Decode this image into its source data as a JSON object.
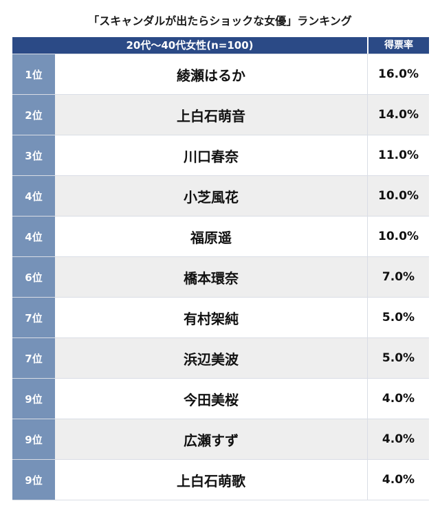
{
  "title": "「スキャンダルが出たらショックな女優」ランキング",
  "header": {
    "group_label": "20代〜40代女性(n=100)",
    "percent_label": "得票率"
  },
  "rows": [
    {
      "rank": "1位",
      "name": "綾瀬はるか",
      "percent": "16.0%"
    },
    {
      "rank": "2位",
      "name": "上白石萌音",
      "percent": "14.0%"
    },
    {
      "rank": "3位",
      "name": "川口春奈",
      "percent": "11.0%"
    },
    {
      "rank": "4位",
      "name": "小芝風花",
      "percent": "10.0%"
    },
    {
      "rank": "4位",
      "name": "福原遥",
      "percent": "10.0%"
    },
    {
      "rank": "6位",
      "name": "橋本環奈",
      "percent": "7.0%"
    },
    {
      "rank": "7位",
      "name": "有村架純",
      "percent": "5.0%"
    },
    {
      "rank": "7位",
      "name": "浜辺美波",
      "percent": "5.0%"
    },
    {
      "rank": "9位",
      "name": "今田美桜",
      "percent": "4.0%"
    },
    {
      "rank": "9位",
      "name": "広瀬すず",
      "percent": "4.0%"
    },
    {
      "rank": "9位",
      "name": "上白石萌歌",
      "percent": "4.0%"
    }
  ]
}
